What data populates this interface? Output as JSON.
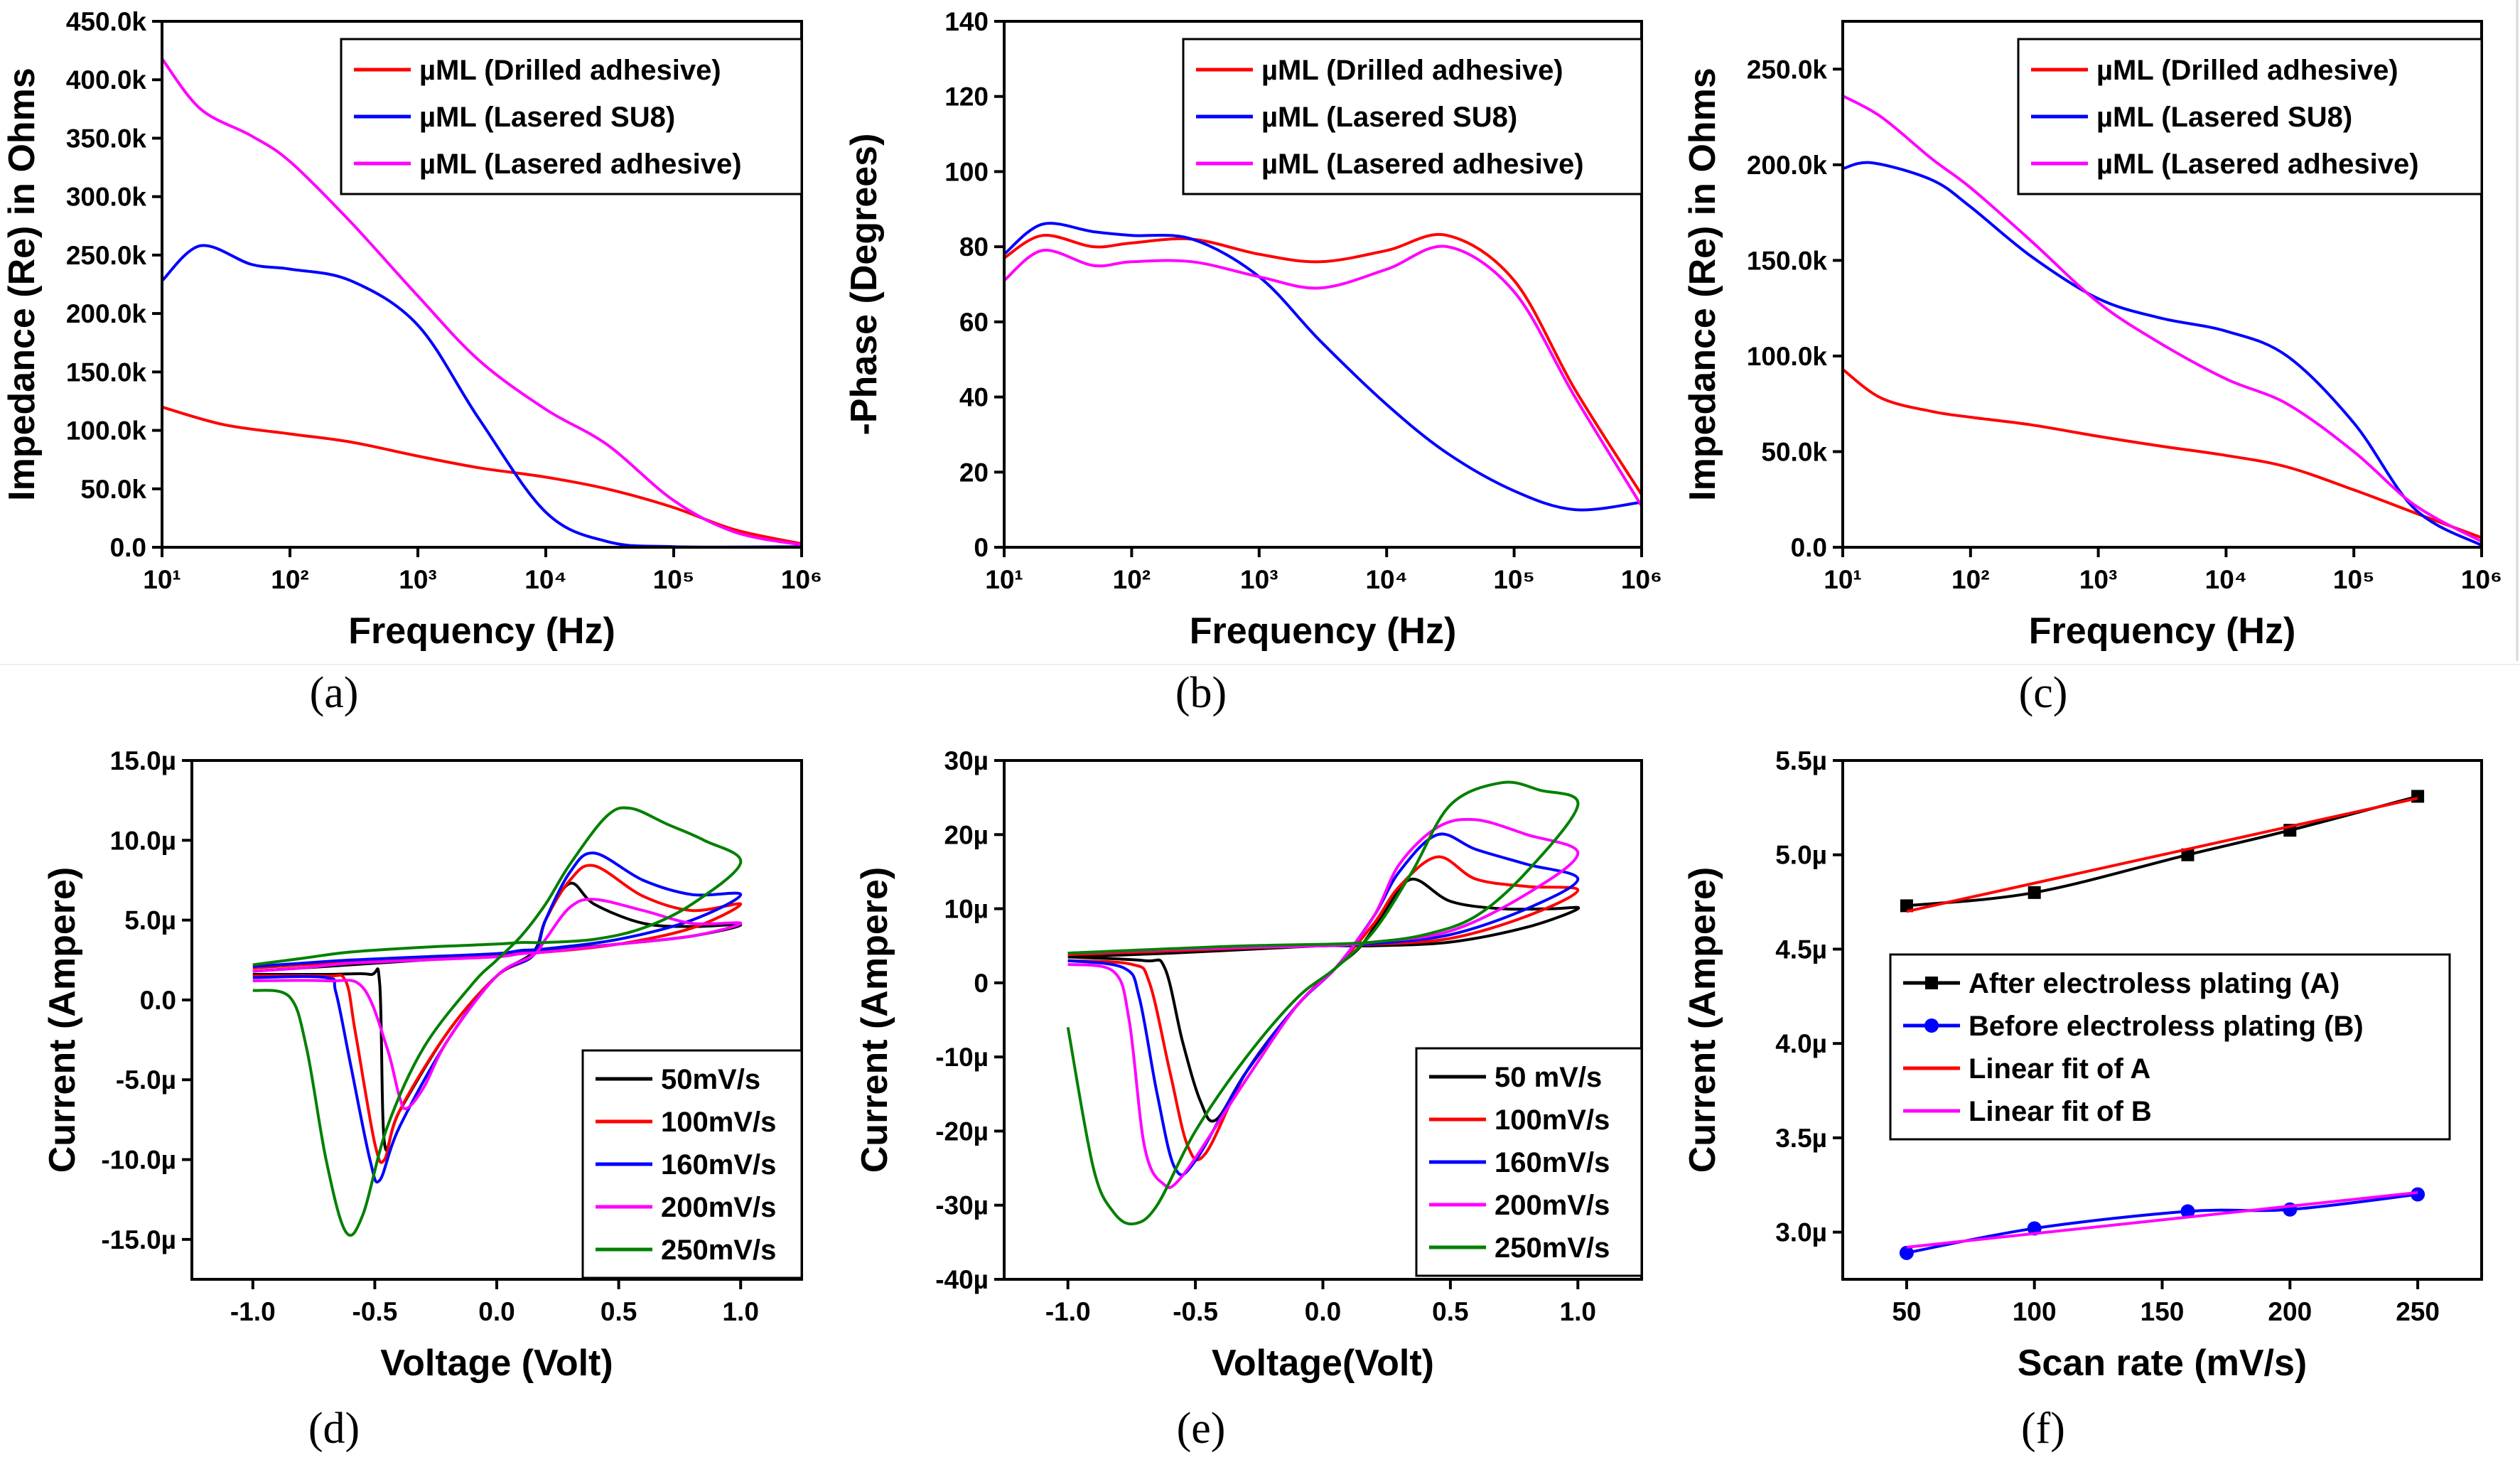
{
  "chart_data": [
    {
      "type": "line",
      "panel_label": "(a)",
      "xlabel": "Frequency (Hz)",
      "ylabel": "Impedance (Re) in Ohms",
      "x_scale": "log",
      "xlim": [
        10,
        1000000
      ],
      "ylim": [
        0,
        450000
      ],
      "x_ticks": [
        "10¹",
        "10²",
        "10³",
        "10⁴",
        "10⁵",
        "10⁶"
      ],
      "y_ticks": [
        "0.0",
        "50.0k",
        "100.0k",
        "150.0k",
        "200.0k",
        "250.0k",
        "300.0k",
        "350.0k",
        "400.0k",
        "450.0k"
      ],
      "legend_position": "top-right",
      "series": [
        {
          "name": "µML (Drilled adhesive)",
          "color": "#ff0000",
          "x": [
            10,
            30,
            100,
            300,
            1000,
            3000,
            10000,
            30000,
            100000,
            300000,
            1000000
          ],
          "values": [
            120000,
            105000,
            97000,
            90000,
            78000,
            68000,
            60000,
            50000,
            34000,
            15000,
            3000
          ]
        },
        {
          "name": "µML (Lasered SU8)",
          "color": "#0000ff",
          "x": [
            10,
            20,
            50,
            100,
            300,
            1000,
            3000,
            10000,
            30000,
            100000,
            1000000
          ],
          "values": [
            228000,
            258000,
            242000,
            238000,
            228000,
            190000,
            110000,
            30000,
            5000,
            500,
            500
          ]
        },
        {
          "name": "µML (Lasered adhesive)",
          "color": "#ff00ff",
          "x": [
            10,
            20,
            50,
            100,
            300,
            1000,
            3000,
            10000,
            30000,
            100000,
            300000,
            1000000
          ],
          "values": [
            418000,
            375000,
            352000,
            330000,
            278000,
            215000,
            160000,
            118000,
            88000,
            40000,
            13000,
            2000
          ]
        }
      ]
    },
    {
      "type": "line",
      "panel_label": "(b)",
      "xlabel": "Frequency (Hz)",
      "ylabel": "-Phase (Degrees)",
      "x_scale": "log",
      "xlim": [
        10,
        1000000
      ],
      "ylim": [
        0,
        140
      ],
      "x_ticks": [
        "10¹",
        "10²",
        "10³",
        "10⁴",
        "10⁵",
        "10⁶"
      ],
      "y_ticks": [
        "0",
        "20",
        "40",
        "60",
        "80",
        "100",
        "120",
        "140"
      ],
      "legend_position": "top-right",
      "series": [
        {
          "name": "µML (Drilled adhesive)",
          "color": "#ff0000",
          "x": [
            10,
            20,
            50,
            100,
            300,
            1000,
            3000,
            10000,
            30000,
            100000,
            300000,
            1000000
          ],
          "values": [
            77,
            83,
            80,
            81,
            82,
            78,
            76,
            79,
            83,
            71,
            42,
            14
          ]
        },
        {
          "name": "µML (Lasered SU8)",
          "color": "#0000ff",
          "x": [
            10,
            20,
            50,
            100,
            300,
            1000,
            3000,
            10000,
            30000,
            100000,
            300000,
            1000000
          ],
          "values": [
            78,
            86,
            84,
            83,
            82,
            72,
            55,
            38,
            25,
            15,
            10,
            12
          ]
        },
        {
          "name": "µML (Lasered adhesive)",
          "color": "#ff00ff",
          "x": [
            10,
            20,
            50,
            100,
            300,
            1000,
            3000,
            10000,
            30000,
            100000,
            300000,
            1000000
          ],
          "values": [
            71,
            79,
            75,
            76,
            76,
            72,
            69,
            74,
            80,
            68,
            40,
            11
          ]
        }
      ]
    },
    {
      "type": "line",
      "panel_label": "(c)",
      "xlabel": "Frequency (Hz)",
      "ylabel": "Impedance (Re) in Ohms",
      "x_scale": "log",
      "xlim": [
        10,
        1000000
      ],
      "ylim": [
        0,
        275000
      ],
      "x_ticks": [
        "10¹",
        "10²",
        "10³",
        "10⁴",
        "10⁵",
        "10⁶"
      ],
      "y_ticks": [
        "0.0",
        "50.0k",
        "100.0k",
        "150.0k",
        "200.0k",
        "250.0k"
      ],
      "legend_position": "top-right",
      "series": [
        {
          "name": "µML (Drilled adhesive)",
          "color": "#ff0000",
          "x": [
            10,
            20,
            50,
            100,
            300,
            1000,
            3000,
            10000,
            30000,
            100000,
            300000,
            1000000
          ],
          "values": [
            93000,
            78000,
            71000,
            68000,
            64000,
            58000,
            53000,
            48000,
            42000,
            30000,
            18000,
            5000
          ]
        },
        {
          "name": "µML (Lasered SU8)",
          "color": "#0000ff",
          "x": [
            10,
            17,
            50,
            100,
            300,
            1000,
            3000,
            10000,
            30000,
            100000,
            300000,
            1000000
          ],
          "values": [
            198000,
            201000,
            192000,
            178000,
            152000,
            130000,
            120000,
            113000,
            100000,
            65000,
            20000,
            1000
          ]
        },
        {
          "name": "µML (Lasered adhesive)",
          "color": "#ff00ff",
          "x": [
            10,
            20,
            50,
            100,
            300,
            1000,
            3000,
            10000,
            30000,
            100000,
            300000,
            1000000
          ],
          "values": [
            236000,
            225000,
            203000,
            188000,
            160000,
            128000,
            107000,
            88000,
            75000,
            50000,
            22000,
            3000
          ]
        }
      ]
    },
    {
      "type": "line",
      "panel_label": "(d)",
      "xlabel": "Voltage (Volt)",
      "ylabel": "Current (Ampere)",
      "xlim": [
        -1.25,
        1.25
      ],
      "ylim": [
        -17.5,
        15
      ],
      "x_ticks": [
        "-1.0",
        "-0.5",
        "0.0",
        "0.5",
        "1.0"
      ],
      "y_ticks": [
        "-15.0µ",
        "-10.0µ",
        "-5.0µ",
        "0.0",
        "5.0µ",
        "10.0µ",
        "15.0µ"
      ],
      "legend_position": "bottom-right",
      "series": [
        {
          "name": "50mV/s",
          "color": "#000000",
          "x": [
            -1.0,
            -0.7,
            -0.52,
            -0.48,
            -0.46,
            -0.4,
            -0.2,
            0.0,
            0.15,
            0.2,
            0.3,
            0.4,
            0.6,
            0.8,
            1.0,
            0.8,
            0.5,
            0.2,
            0.1,
            0.0,
            -0.3,
            -0.6,
            -0.8,
            -1.0
          ],
          "values": [
            1.6,
            1.6,
            1.6,
            1.0,
            -9.0,
            -7.0,
            -2.0,
            1.5,
            3.0,
            5.0,
            7.3,
            6.0,
            4.8,
            4.6,
            4.7,
            4.0,
            3.5,
            3.1,
            3.0,
            2.8,
            2.5,
            2.2,
            2.0,
            1.8
          ]
        },
        {
          "name": "100mV/s",
          "color": "#ff0000",
          "x": [
            -1.0,
            -0.7,
            -0.62,
            -0.58,
            -0.5,
            -0.46,
            -0.4,
            -0.2,
            0.0,
            0.15,
            0.2,
            0.3,
            0.4,
            0.6,
            0.8,
            1.0,
            0.8,
            0.5,
            0.2,
            0.1,
            0.0,
            -0.3,
            -0.6,
            -0.8,
            -1.0
          ],
          "values": [
            1.5,
            1.5,
            1.2,
            -2.0,
            -9.0,
            -10.0,
            -7.0,
            -2.0,
            1.5,
            2.8,
            5.0,
            7.5,
            8.4,
            6.5,
            5.6,
            6.0,
            4.5,
            3.5,
            3.0,
            3.0,
            2.8,
            2.6,
            2.4,
            2.2,
            2.0
          ]
        },
        {
          "name": "160mV/s",
          "color": "#0000ff",
          "x": [
            -1.0,
            -0.7,
            -0.66,
            -0.6,
            -0.52,
            -0.48,
            -0.4,
            -0.2,
            0.0,
            0.15,
            0.2,
            0.3,
            0.4,
            0.6,
            0.8,
            1.0,
            0.8,
            0.5,
            0.2,
            0.1,
            0.0,
            -0.3,
            -0.6,
            -0.8,
            -1.0
          ],
          "values": [
            1.4,
            1.4,
            0.5,
            -4.0,
            -10.0,
            -11.3,
            -8.0,
            -2.5,
            1.5,
            2.8,
            5.0,
            8.0,
            9.2,
            7.5,
            6.6,
            6.6,
            5.0,
            3.8,
            3.2,
            3.1,
            2.9,
            2.7,
            2.5,
            2.3,
            2.1
          ]
        },
        {
          "name": "200mV/s",
          "color": "#ff00ff",
          "x": [
            -1.0,
            -0.7,
            -0.55,
            -0.45,
            -0.4,
            -0.37,
            -0.3,
            -0.2,
            0.0,
            0.15,
            0.2,
            0.3,
            0.4,
            0.6,
            0.8,
            1.0,
            0.8,
            0.5,
            0.2,
            0.1,
            0.0,
            -0.3,
            -0.6,
            -0.8,
            -1.0
          ],
          "values": [
            1.2,
            1.2,
            0.8,
            -3.0,
            -6.0,
            -6.8,
            -5.5,
            -2.5,
            1.5,
            2.8,
            3.8,
            5.8,
            6.3,
            5.6,
            4.8,
            4.8,
            4.0,
            3.5,
            3.0,
            2.9,
            2.7,
            2.5,
            2.3,
            2.0,
            1.8
          ]
        },
        {
          "name": "250mV/s",
          "color": "#008000",
          "x": [
            -1.0,
            -0.85,
            -0.78,
            -0.7,
            -0.62,
            -0.55,
            -0.45,
            -0.3,
            -0.1,
            0.0,
            0.1,
            0.2,
            0.3,
            0.45,
            0.55,
            0.7,
            0.85,
            1.0,
            0.8,
            0.6,
            0.4,
            0.2,
            0.1,
            0.0,
            -0.3,
            -0.6,
            -0.8,
            -1.0
          ],
          "values": [
            0.6,
            0.2,
            -3.0,
            -10.0,
            -14.5,
            -13.5,
            -8.0,
            -3.0,
            1.0,
            2.5,
            4.0,
            6.0,
            8.5,
            11.5,
            12.0,
            11.0,
            10.0,
            8.6,
            6.0,
            4.5,
            3.8,
            3.6,
            3.6,
            3.5,
            3.3,
            3.0,
            2.6,
            2.2
          ]
        }
      ]
    },
    {
      "type": "line",
      "panel_label": "(e)",
      "xlabel": "Voltage(Volt)",
      "ylabel": "Current (Ampere)",
      "xlim": [
        -1.25,
        1.25
      ],
      "ylim": [
        -40,
        30
      ],
      "x_ticks": [
        "-1.0",
        "-0.5",
        "0.0",
        "0.5",
        "1.0"
      ],
      "y_ticks": [
        "-40µ",
        "-30µ",
        "-20µ",
        "-10µ",
        "0",
        "10µ",
        "20µ",
        "30µ"
      ],
      "legend_position": "bottom-right",
      "series": [
        {
          "name": "50 mV/s",
          "color": "#000000",
          "x": [
            -1.0,
            -0.7,
            -0.62,
            -0.55,
            -0.48,
            -0.42,
            -0.3,
            -0.1,
            0.05,
            0.15,
            0.25,
            0.35,
            0.5,
            0.7,
            0.9,
            1.0,
            0.8,
            0.5,
            0.2,
            0.0,
            -0.3,
            -0.6,
            -1.0
          ],
          "values": [
            3.5,
            3.0,
            2.0,
            -8.0,
            -16.0,
            -18.5,
            -12.0,
            -3.0,
            2.0,
            5.0,
            10.0,
            14.0,
            11.0,
            10.0,
            10.0,
            10.0,
            7.5,
            5.5,
            5.0,
            5.0,
            4.5,
            4.0,
            3.5
          ]
        },
        {
          "name": "100mV/s",
          "color": "#ff0000",
          "x": [
            -1.0,
            -0.75,
            -0.68,
            -0.6,
            -0.53,
            -0.46,
            -0.3,
            -0.1,
            0.05,
            0.2,
            0.3,
            0.45,
            0.6,
            0.8,
            1.0,
            0.8,
            0.5,
            0.2,
            0.0,
            -0.3,
            -0.6,
            -1.0
          ],
          "values": [
            3.0,
            2.5,
            0.0,
            -12.0,
            -22.0,
            -23.0,
            -12.0,
            -3.0,
            2.0,
            8.0,
            13.0,
            17.0,
            14.0,
            13.0,
            12.5,
            9.0,
            6.0,
            5.2,
            5.0,
            4.7,
            4.3,
            3.8
          ]
        },
        {
          "name": "160mV/s",
          "color": "#0000ff",
          "x": [
            -1.0,
            -0.78,
            -0.72,
            -0.65,
            -0.58,
            -0.5,
            -0.3,
            -0.1,
            0.05,
            0.2,
            0.3,
            0.45,
            0.6,
            0.8,
            1.0,
            0.8,
            0.5,
            0.2,
            0.0,
            -0.3,
            -0.6,
            -1.0
          ],
          "values": [
            3.0,
            2.0,
            -2.0,
            -15.0,
            -25.0,
            -24.0,
            -12.0,
            -3.0,
            2.0,
            9.0,
            15.0,
            20.0,
            18.0,
            16.0,
            14.0,
            10.0,
            6.5,
            5.3,
            5.0,
            4.8,
            4.5,
            4.0
          ]
        },
        {
          "name": "200mV/s",
          "color": "#ff00ff",
          "x": [
            -1.0,
            -0.82,
            -0.76,
            -0.7,
            -0.63,
            -0.55,
            -0.3,
            -0.1,
            0.05,
            0.2,
            0.3,
            0.45,
            0.6,
            0.8,
            1.0,
            0.8,
            0.5,
            0.2,
            0.0,
            -0.3,
            -0.6,
            -1.0
          ],
          "values": [
            2.5,
            1.5,
            -5.0,
            -22.0,
            -27.0,
            -26.0,
            -13.0,
            -3.0,
            2.0,
            9.0,
            16.0,
            21.0,
            22.0,
            20.0,
            17.5,
            12.0,
            7.0,
            5.5,
            5.0,
            4.8,
            4.5,
            4.0
          ]
        },
        {
          "name": "250mV/s",
          "color": "#008000",
          "x": [
            -1.0,
            -0.9,
            -0.82,
            -0.74,
            -0.65,
            -0.5,
            -0.3,
            -0.1,
            0.05,
            0.2,
            0.35,
            0.5,
            0.7,
            0.85,
            1.0,
            0.8,
            0.6,
            0.4,
            0.2,
            0.0,
            -0.3,
            -0.6,
            -1.0
          ],
          "values": [
            -6.0,
            -25.0,
            -31.0,
            -32.5,
            -30.0,
            -20.0,
            -10.0,
            -2.0,
            2.0,
            7.0,
            15.0,
            24.0,
            27.0,
            26.0,
            24.0,
            15.0,
            9.0,
            6.5,
            5.5,
            5.2,
            5.0,
            4.6,
            4.0
          ]
        }
      ]
    },
    {
      "type": "line",
      "panel_label": "(f)",
      "xlabel": "Scan rate (mV/s)",
      "ylabel": "Current (Ampere)",
      "xlim": [
        25,
        275
      ],
      "ylim": [
        2.75,
        5.5
      ],
      "x_ticks": [
        "50",
        "100",
        "150",
        "200",
        "250"
      ],
      "y_ticks": [
        "3.0µ",
        "3.5µ",
        "4.0µ",
        "4.5µ",
        "5.0µ",
        "5.5µ"
      ],
      "legend_position": "center-left",
      "series": [
        {
          "name": "After electroless plating (A)",
          "color": "#000000",
          "marker": "square",
          "x": [
            50,
            100,
            160,
            200,
            250
          ],
          "values": [
            4.73,
            4.8,
            5.0,
            5.13,
            5.31
          ]
        },
        {
          "name": "Before electroless plating (B)",
          "color": "#0000ff",
          "marker": "circle",
          "x": [
            50,
            100,
            160,
            200,
            250
          ],
          "values": [
            2.89,
            3.02,
            3.11,
            3.12,
            3.2
          ]
        },
        {
          "name": "Linear fit of A",
          "color": "#ff0000",
          "x": [
            50,
            250
          ],
          "values": [
            4.7,
            5.3
          ]
        },
        {
          "name": "Linear fit of B",
          "color": "#ff00ff",
          "x": [
            50,
            250
          ],
          "values": [
            2.92,
            3.21
          ]
        }
      ]
    }
  ]
}
